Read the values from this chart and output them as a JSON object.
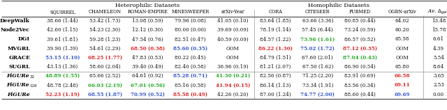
{
  "het_label": "Heterophilic Datasets",
  "hom_label": "Homophilic Datasets",
  "col_headers": [
    "SQUIRREL",
    "CHAMELEON",
    "ROMAN-EMPIRE",
    "MINESWEEPER",
    "arXiv-Year",
    "CORA",
    "CITESEER",
    "PUBMED",
    "OGBN-arXiv"
  ],
  "last_header": "Av. Δgain",
  "row_names": [
    {
      "base": "DeepWalk",
      "sub": "",
      "italic": false
    },
    {
      "base": "Node2Vec",
      "sub": "",
      "italic": false
    },
    {
      "base": "DGI",
      "sub": "",
      "italic": false
    },
    {
      "base": "MVGRL",
      "sub": "",
      "italic": false
    },
    {
      "base": "GRACE",
      "sub": "",
      "italic": false
    },
    {
      "base": "SUGRL",
      "sub": "",
      "italic": false
    },
    {
      "base": "FiGURe",
      "sub": "32",
      "italic": true
    },
    {
      "base": "FiGURe",
      "sub": "128",
      "italic": true
    },
    {
      "base": "FiGURe",
      "sub": "",
      "italic": true
    }
  ],
  "data": [
    [
      "38.66 (1.44)",
      "53.42 (1.73)",
      "13.08 (0.59)",
      "79.96 (0.08)",
      "41.05 (0.10)",
      "83.64 (1.85)",
      "63.66 (3.36)",
      "80.85 (0.44)",
      "64.02",
      "13.48"
    ],
    [
      "42.60 (1.15)",
      "54.23 (2.30)",
      "12.12 (0.30)",
      "80.00 (0.00)",
      "39.69 (0.09)",
      "78.19 (1.14)",
      "57.45 (6.44)",
      "73.24 (0.59)",
      "60.20",
      "15.78"
    ],
    [
      "39.61 (1.81)",
      "59.28 (1.23)",
      "47.54 (0.76)",
      "82.51 (0.47)",
      "40.59 (0.09)",
      "84.57 (1.22)",
      "73.96 (1.61)",
      "86.57 (0.52)",
      "65.58",
      "6.61"
    ],
    [
      "39.90 (1.39)",
      "54.61 (2.29)",
      "68.50 (0.38)",
      "85.60 (0.35)",
      "OOM",
      "86.22 (1.30)",
      "75.02 (1.72)",
      "87.12 (0.35)",
      "OOM",
      "4.39"
    ],
    [
      "53.15 (1.10)",
      "68.25 (1.77)",
      "47.83 (0.53)",
      "80.22 (0.45)",
      "OOM",
      "84.79 (1.51)",
      "67.60 (2.01)",
      "87.04 (0.43)",
      "OOM",
      "5.54"
    ],
    [
      "43.13 (1.36)",
      "58.60 (2.04)",
      "39.40 (0.49)",
      "82.40 (0.58)",
      "36.96 (0.19)",
      "81.21 (2.07)",
      "67.50 (1.62)",
      "86.90 (0.54)",
      "65.80",
      "8.64"
    ],
    [
      "48.89 (1.55)",
      "65.66 (2.52)",
      "64.61 (0.92)",
      "85.28 (0.71)",
      "41.30 (0.21)",
      "82.56 (0.87)",
      "71.25 (2.20)",
      "83.91 (0.69)",
      "66.58",
      "3.65"
    ],
    [
      "48.78 (2.48)",
      "66.03 (2.19)",
      "67.01 (0.56)",
      "85.16 (0.58)",
      "41.94 (0.15)",
      "86.14 (1.13)",
      "73.34 (1.91)",
      "83.56 (0.34)",
      "69.11",
      "2.53"
    ],
    [
      "52.23 (1.19)",
      "68.55 (1.87)",
      "70.99 (0.52)",
      "85.58 (0.49)",
      "42.26 (0.20)",
      "87.00 (1.24)",
      "74.77 (2.00)",
      "88.60 (0.44)",
      "69.69",
      "0.00"
    ]
  ],
  "cell_colors": [
    [
      "#111111",
      "#111111",
      "#111111",
      "#111111",
      "#111111",
      "#111111",
      "#111111",
      "#111111",
      "#111111",
      "#111111"
    ],
    [
      "#111111",
      "#111111",
      "#111111",
      "#111111",
      "#111111",
      "#111111",
      "#111111",
      "#111111",
      "#111111",
      "#111111"
    ],
    [
      "#111111",
      "#111111",
      "#111111",
      "#111111",
      "#111111",
      "#111111",
      "#22aa22",
      "#111111",
      "#111111",
      "#111111"
    ],
    [
      "#111111",
      "#111111",
      "#dd2222",
      "#3355cc",
      "#111111",
      "#dd2222",
      "#3355cc",
      "#dd2222",
      "#111111",
      "#111111"
    ],
    [
      "#3355cc",
      "#dd2222",
      "#111111",
      "#111111",
      "#111111",
      "#111111",
      "#111111",
      "#22aa22",
      "#111111",
      "#111111"
    ],
    [
      "#111111",
      "#111111",
      "#111111",
      "#111111",
      "#111111",
      "#111111",
      "#111111",
      "#111111",
      "#111111",
      "#111111"
    ],
    [
      "#22aa22",
      "#111111",
      "#111111",
      "#3355cc",
      "#22aa22",
      "#111111",
      "#111111",
      "#111111",
      "#dd2222",
      "#111111"
    ],
    [
      "#111111",
      "#22aa22",
      "#22aa22",
      "#111111",
      "#dd2222",
      "#111111",
      "#111111",
      "#111111",
      "#dd2222",
      "#111111"
    ],
    [
      "#dd2222",
      "#3355cc",
      "#3355cc",
      "#dd2222",
      "#111111",
      "#111111",
      "#3355cc",
      "#111111",
      "#3355cc",
      "#111111"
    ]
  ],
  "figsize": [
    6.4,
    1.58
  ],
  "dpi": 100
}
